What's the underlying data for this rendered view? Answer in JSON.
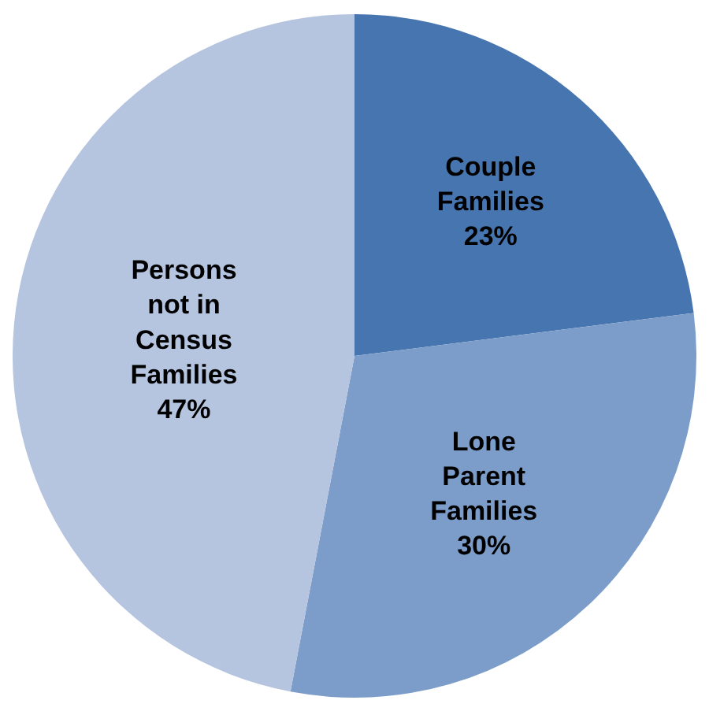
{
  "chart_data": {
    "type": "pie",
    "categories": [
      "Couple\nFamilies",
      "Lone\nParent\nFamilies",
      "Persons\nnot in\nCensus\nFamilies"
    ],
    "values": [
      23,
      30,
      47
    ],
    "value_labels": [
      "23%",
      "30%",
      "47%"
    ],
    "colors": [
      "#4775b0",
      "#7c9dc9",
      "#b5c4df"
    ],
    "legend": false
  }
}
